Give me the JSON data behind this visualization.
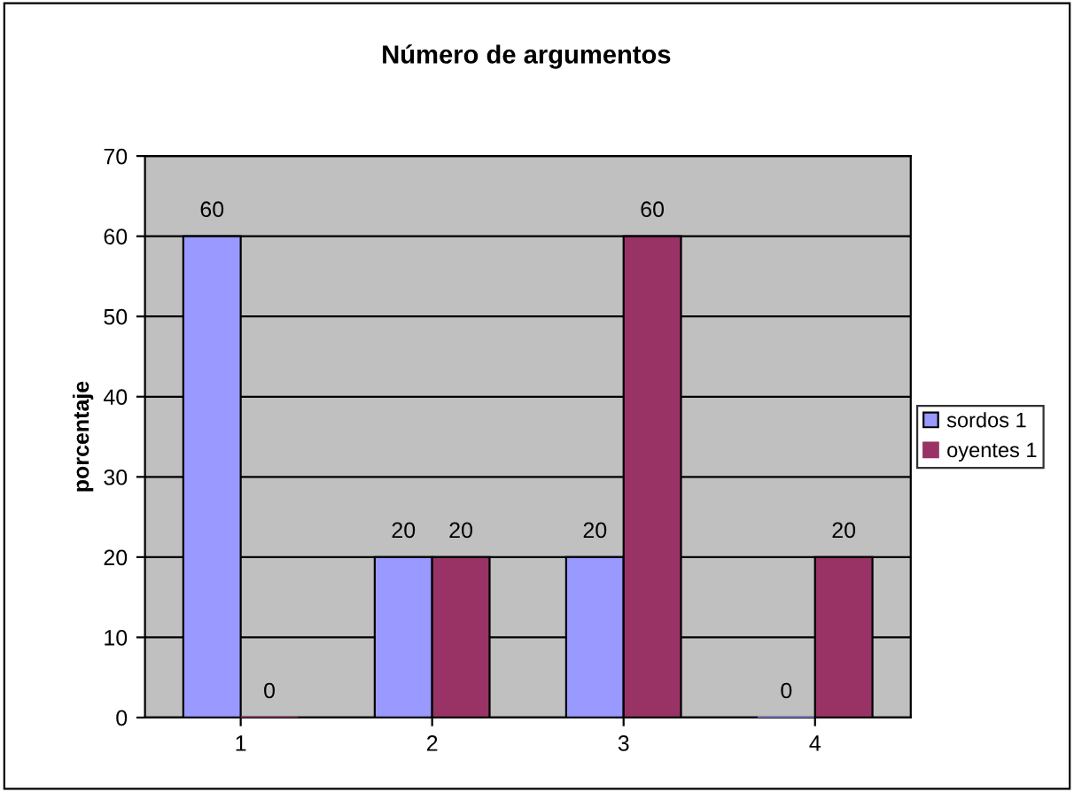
{
  "chart_data": {
    "type": "bar",
    "title": "Número de argumentos",
    "ylabel": "porcentaje",
    "categories": [
      "1",
      "2",
      "3",
      "4"
    ],
    "series": [
      {
        "name": "sordos 1",
        "color": "#9999ff",
        "values": [
          60,
          20,
          20,
          0
        ]
      },
      {
        "name": "oyentes 1",
        "color": "#993366",
        "values": [
          0,
          20,
          60,
          20
        ]
      }
    ],
    "ylim": [
      0,
      70
    ],
    "yticks": [
      0,
      10,
      20,
      30,
      40,
      50,
      60,
      70
    ],
    "grid": "y",
    "legend": "right",
    "data_labels": true
  }
}
